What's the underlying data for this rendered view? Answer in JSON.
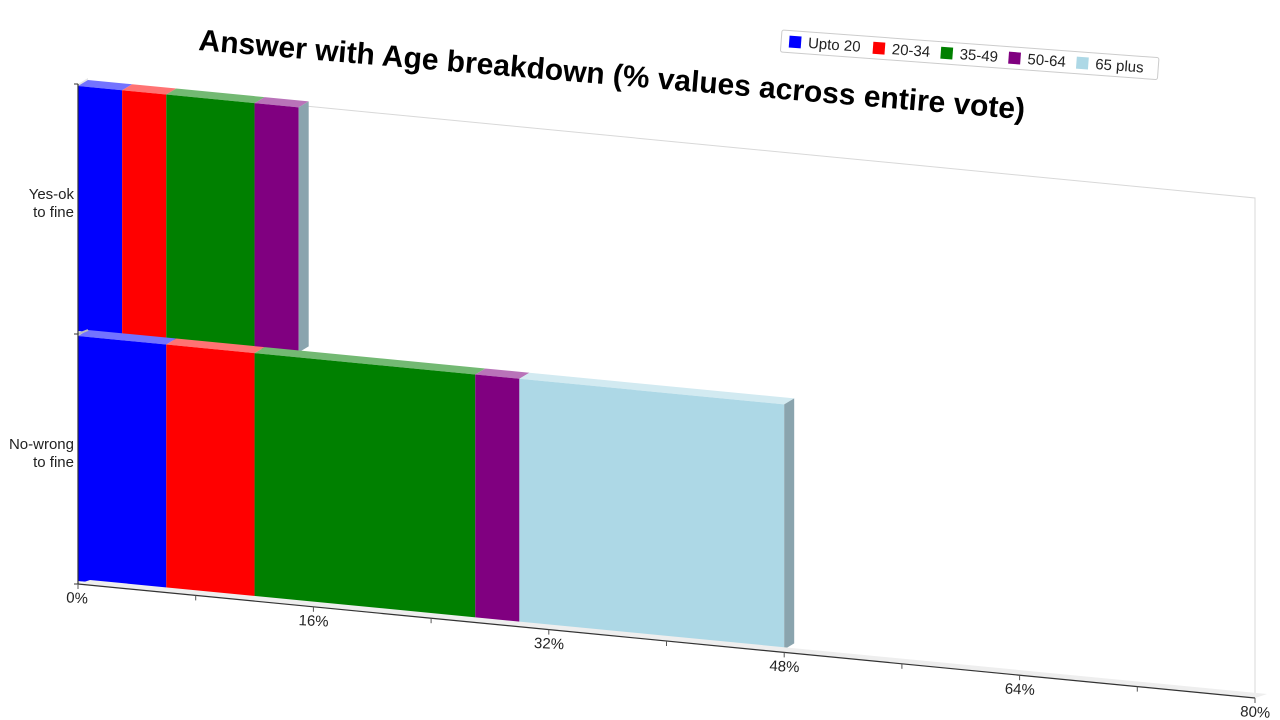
{
  "chart_data": {
    "type": "bar",
    "orientation": "horizontal",
    "stacked": true,
    "title": "Answer with Age breakdown (% values across entire vote)",
    "categories": [
      "Yes-ok to fine",
      "No-wrong to fine"
    ],
    "category_lines": [
      [
        "Yes-ok",
        "to fine"
      ],
      [
        "No-wrong",
        "to fine"
      ]
    ],
    "series": [
      {
        "name": "Upto 20",
        "color": "#0000ff",
        "values": [
          3,
          6
        ]
      },
      {
        "name": "20-34",
        "color": "#ff0000",
        "values": [
          3,
          6
        ]
      },
      {
        "name": "35-49",
        "color": "#008000",
        "values": [
          6,
          15
        ]
      },
      {
        "name": "50-64",
        "color": "#800080",
        "values": [
          3,
          3
        ]
      },
      {
        "name": "65 plus",
        "color": "#add8e6",
        "values": [
          0,
          18
        ]
      }
    ],
    "x_ticks": [
      "0%",
      "16%",
      "32%",
      "48%",
      "64%",
      "80%"
    ],
    "xlim": [
      0,
      80
    ],
    "legend_position": "top-right",
    "grid": false
  }
}
